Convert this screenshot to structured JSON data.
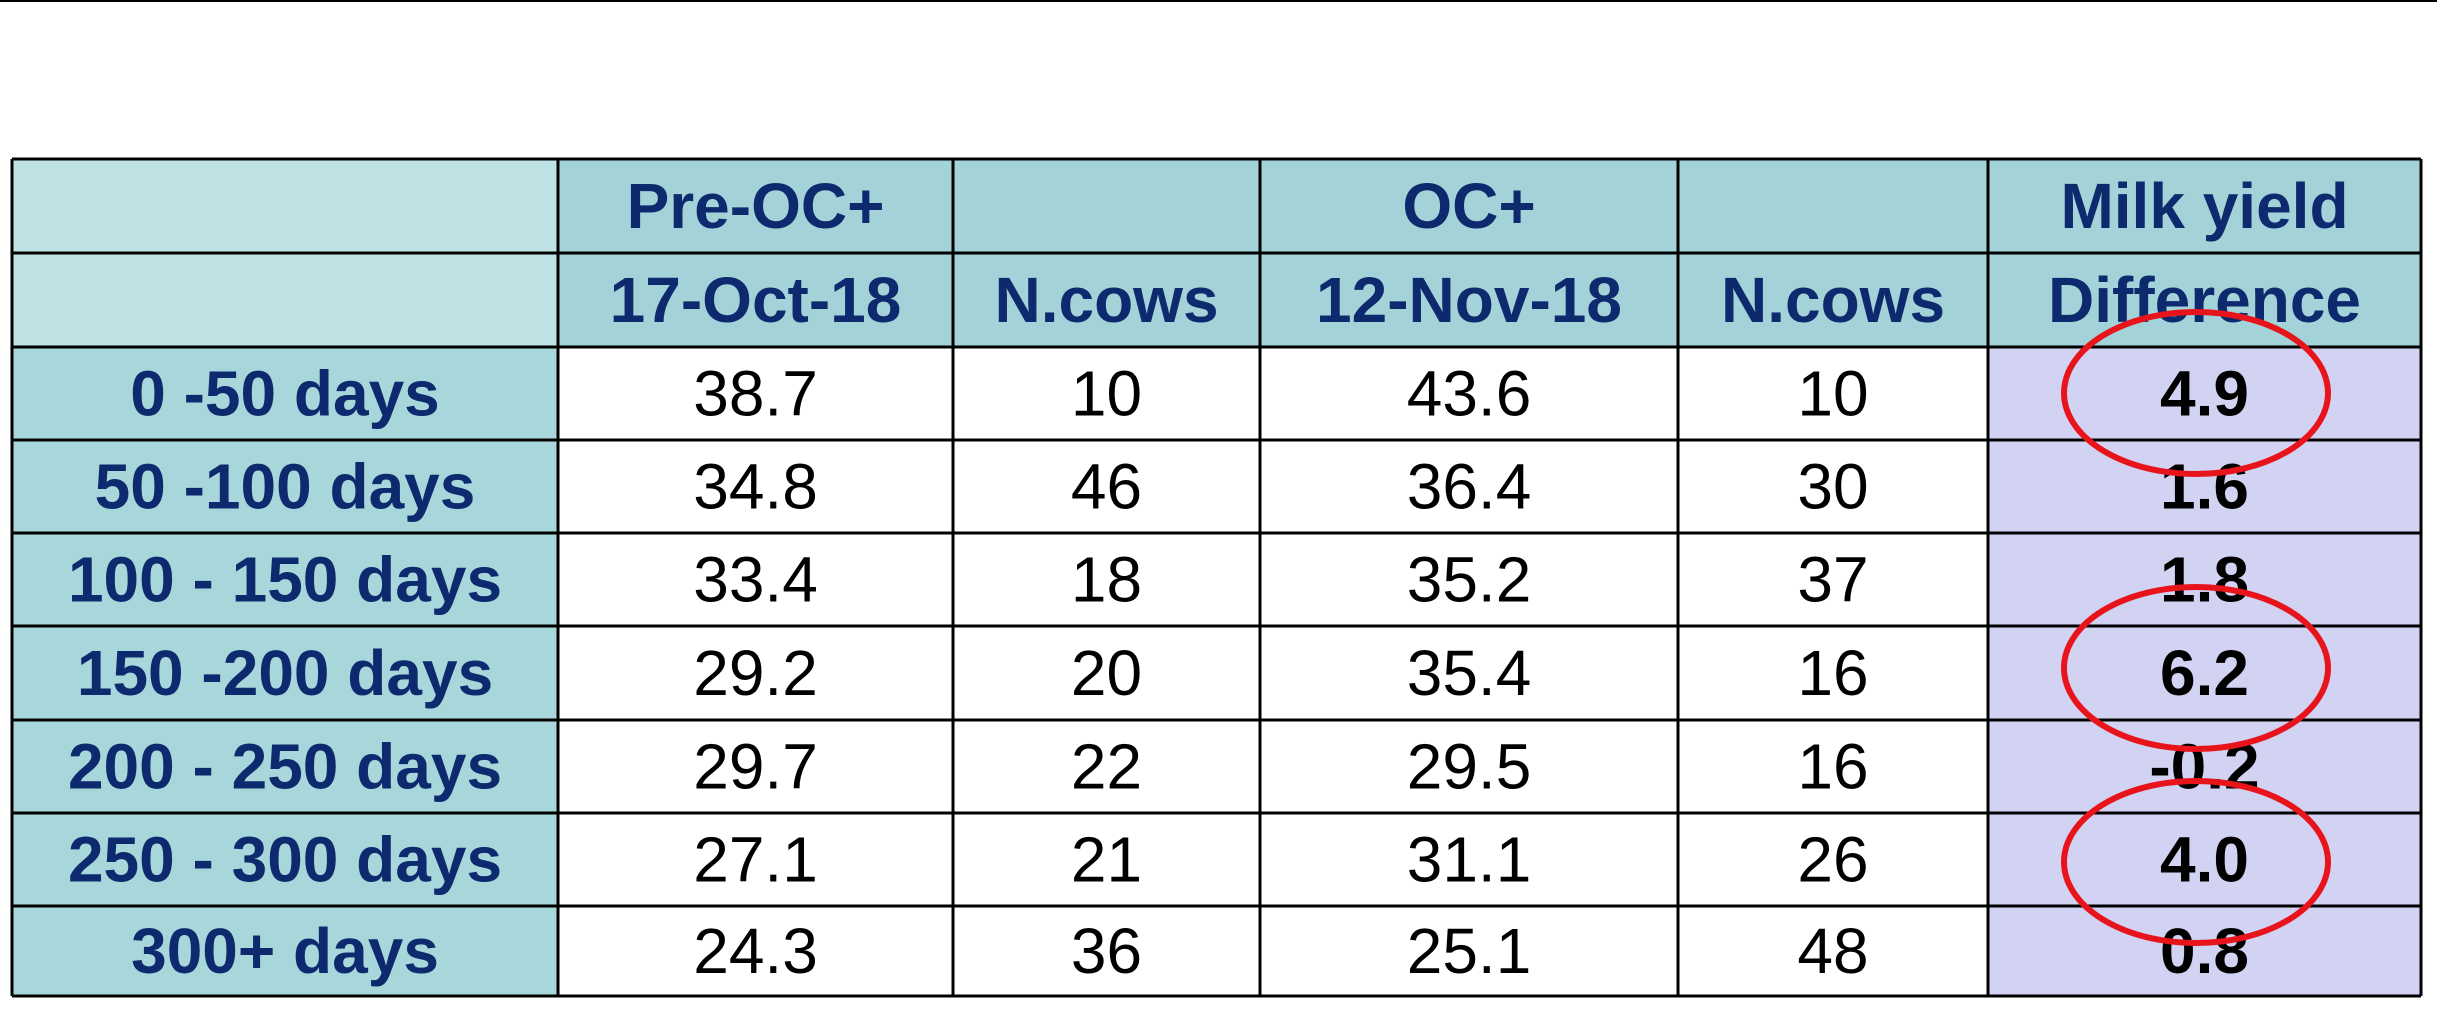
{
  "header": {
    "top": {
      "pre": "Pre-OC+",
      "oc": "OC+",
      "milk": "Milk yield"
    },
    "sub": [
      "17-Oct-18",
      "N.cows",
      "12-Nov-18",
      "N.cows",
      "Difference"
    ]
  },
  "table": {
    "rows": [
      {
        "label": "0 -50 days",
        "cells": [
          "38.7",
          "10",
          "43.6",
          "10",
          "4.9"
        ]
      },
      {
        "label": "50 -100 days",
        "cells": [
          "34.8",
          "46",
          "36.4",
          "30",
          "1.6"
        ]
      },
      {
        "label": "100 - 150 days",
        "cells": [
          "33.4",
          "18",
          "35.2",
          "37",
          "1.8"
        ]
      },
      {
        "label": "150 -200 days",
        "cells": [
          "29.2",
          "20",
          "35.4",
          "16",
          "6.2"
        ]
      },
      {
        "label": "200 - 250 days",
        "cells": [
          "29.7",
          "22",
          "29.5",
          "16",
          "-0.2"
        ]
      },
      {
        "label": "250 - 300 days",
        "cells": [
          "27.1",
          "21",
          "31.1",
          "26",
          "4.0"
        ]
      },
      {
        "label": "300+ days",
        "cells": [
          "24.3",
          "36",
          "25.1",
          "48",
          "0.8"
        ]
      }
    ]
  }
}
